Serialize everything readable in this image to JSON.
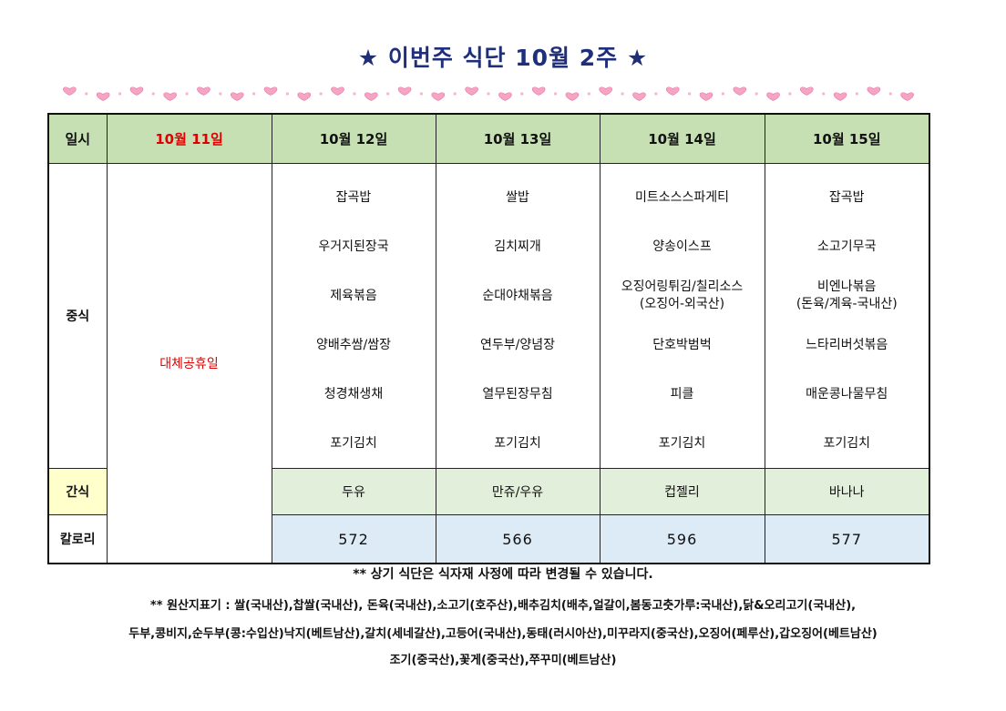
{
  "title": "★ 이번주 식단 10월 2주 ★",
  "header": {
    "corner": "일시",
    "days": [
      "10월 11일",
      "10월 12일",
      "10월 13일",
      "10월 14일",
      "10월 15일"
    ]
  },
  "row_labels": {
    "lunch": "중식",
    "snack": "간식",
    "calories": "칼로리"
  },
  "holiday_text": "대체공휴일",
  "lunch": [
    [
      "잡곡밥",
      "우거지된장국",
      "제육볶음",
      "양배추쌈/쌈장",
      "청경채생채",
      "포기김치"
    ],
    [
      "쌀밥",
      "김치찌개",
      "순대야채볶음",
      "연두부/양념장",
      "열무된장무침",
      "포기김치"
    ],
    [
      "미트소스스파게티",
      "양송이스프",
      "오징어링튀김/칠리소스\n(오징어-외국산)",
      "단호박범벅",
      "피클",
      "포기김치"
    ],
    [
      "잡곡밥",
      "소고기무국",
      "비엔나볶음\n(돈육/계육-국내산)",
      "느타리버섯볶음",
      "매운콩나물무침",
      "포기김치"
    ]
  ],
  "snacks": [
    "두유",
    "만쥬/우유",
    "컵젤리",
    "바나나"
  ],
  "calories": [
    "572",
    "566",
    "596",
    "577"
  ],
  "notes": {
    "change_notice": "** 상기 식단은 식자재 사정에 따라 변경될 수 있습니다.",
    "origin_line1": "** 원산지표기 : 쌀(국내산),찹쌀(국내산), 돈육(국내산),소고기(호주산),배추김치(배추,얼갈이,봄동고춧가루:국내산),닭&오리고기(국내산),",
    "origin_line2": "두부,콩비지,순두부(콩:수입산)낙지(베트남산),갈치(세네갈산),고등어(국내산),동태(러시아산),미꾸라지(중국산),오징어(페루산),갑오징어(베트남산)",
    "origin_line3": "조기(중국산),꽃게(중국산),쭈꾸미(베트남산)"
  },
  "colors": {
    "title": "#1f2f7a",
    "header_bg": "#c6e0b4",
    "holiday_text": "#e00000",
    "snack_label_bg": "#ffffcc",
    "snack_bg": "#e2efda",
    "calorie_bg": "#ddebf7",
    "heart": "#f6a3c4"
  }
}
